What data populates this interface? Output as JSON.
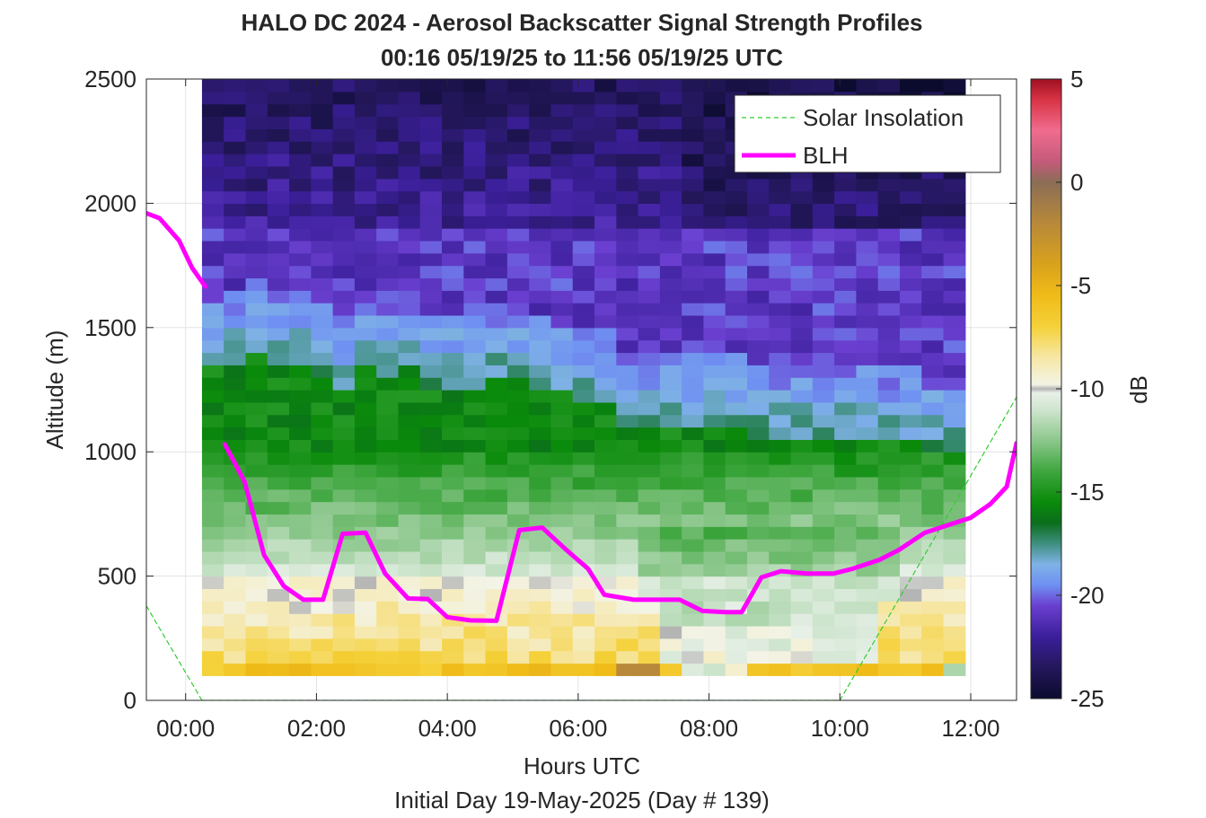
{
  "chart_data": {
    "type": "heatmap",
    "title": "HALO DC 2024 - Aerosol Backscatter Signal Strength Profiles",
    "subtitle": "00:16 05/19/25 to 11:56 05/19/25  UTC",
    "xlabel": "Hours UTC",
    "footer": "Initial Day 19-May-2025 (Day # 139)",
    "ylabel": "Altitude (m)",
    "colorbar_label": "dB",
    "xlim": [
      -0.6,
      12.7
    ],
    "ylim": [
      0,
      2500
    ],
    "grid": true,
    "legend_position": "top-right",
    "x_ticks": [
      {
        "value": 0,
        "label": "00:00"
      },
      {
        "value": 2,
        "label": "02:00"
      },
      {
        "value": 4,
        "label": "04:00"
      },
      {
        "value": 6,
        "label": "06:00"
      },
      {
        "value": 8,
        "label": "08:00"
      },
      {
        "value": 10,
        "label": "10:00"
      },
      {
        "value": 12,
        "label": "12:00"
      }
    ],
    "y_ticks": [
      {
        "value": 0,
        "label": "0"
      },
      {
        "value": 500,
        "label": "500"
      },
      {
        "value": 1000,
        "label": "1000"
      },
      {
        "value": 1500,
        "label": "1500"
      },
      {
        "value": 2000,
        "label": "2000"
      },
      {
        "value": 2500,
        "label": "2500"
      }
    ],
    "colorbar": {
      "min": -25,
      "max": 5,
      "ticks": [
        {
          "value": 5,
          "label": "5"
        },
        {
          "value": 0,
          "label": "0"
        },
        {
          "value": -5,
          "label": "-5"
        },
        {
          "value": -10,
          "label": "-10"
        },
        {
          "value": -15,
          "label": "-15"
        },
        {
          "value": -20,
          "label": "-20"
        },
        {
          "value": -25,
          "label": "-25"
        }
      ],
      "colormap": [
        {
          "v": -25,
          "c": "#0b0b2e"
        },
        {
          "v": -23.5,
          "c": "#24175c"
        },
        {
          "v": -22,
          "c": "#3b1f9a"
        },
        {
          "v": -20.5,
          "c": "#6a3fd0"
        },
        {
          "v": -19.5,
          "c": "#6f90f2"
        },
        {
          "v": -18.5,
          "c": "#7fb2e6"
        },
        {
          "v": -17.5,
          "c": "#3f8f80"
        },
        {
          "v": -16.5,
          "c": "#0b6e1c"
        },
        {
          "v": -15.5,
          "c": "#0a8a0a"
        },
        {
          "v": -14,
          "c": "#3ea63e"
        },
        {
          "v": -12.5,
          "c": "#8cc78c"
        },
        {
          "v": -11,
          "c": "#cfe5cf"
        },
        {
          "v": -10.2,
          "c": "#e8f0e8"
        },
        {
          "v": -10,
          "c": "#b4b4b4"
        },
        {
          "v": -9.8,
          "c": "#f3f3e6"
        },
        {
          "v": -8.5,
          "c": "#f6e7a6"
        },
        {
          "v": -7,
          "c": "#f5d13a"
        },
        {
          "v": -5.5,
          "c": "#efbc18"
        },
        {
          "v": -4,
          "c": "#d9a21c"
        },
        {
          "v": -2,
          "c": "#b8893a"
        },
        {
          "v": 0,
          "c": "#8a6d55"
        },
        {
          "v": 1,
          "c": "#c45a7a"
        },
        {
          "v": 2.5,
          "c": "#f06c8e"
        },
        {
          "v": 4,
          "c": "#d83344"
        },
        {
          "v": 5,
          "c": "#9d1020"
        }
      ]
    },
    "heatmap": {
      "x_start": 0.25,
      "x_step": 0.3333,
      "num_columns": 35,
      "y_start": 100,
      "y_step": 50,
      "num_rows": 48,
      "description_of_fill": "green/blue/purple values vs altitude; white/grey near -10 dB; yellow below ~500 m"
    },
    "series": [
      {
        "name": "Solar Insolation",
        "color": "#33cc33",
        "style": "dashed",
        "segments": [
          [
            [
              -0.6,
              380
            ],
            [
              0.25,
              0
            ]
          ],
          [
            [
              0.25,
              0
            ],
            [
              10.0,
              0
            ]
          ],
          [
            [
              10.0,
              0
            ],
            [
              12.7,
              1220
            ]
          ]
        ]
      },
      {
        "name": "BLH",
        "color": "#ff00ff",
        "style": "solid",
        "segments": [
          [
            [
              -0.6,
              1960
            ],
            [
              -0.4,
              1940
            ],
            [
              -0.1,
              1850
            ],
            [
              0.1,
              1740
            ],
            [
              0.3,
              1665
            ]
          ],
          [
            [
              0.6,
              1030
            ],
            [
              0.9,
              880
            ],
            [
              1.2,
              585
            ],
            [
              1.5,
              460
            ],
            [
              1.8,
              405
            ],
            [
              2.1,
              405
            ],
            [
              2.4,
              670
            ],
            [
              2.75,
              675
            ],
            [
              3.05,
              510
            ],
            [
              3.4,
              410
            ],
            [
              3.7,
              408
            ],
            [
              4.0,
              335
            ],
            [
              4.35,
              322
            ],
            [
              4.75,
              320
            ],
            [
              5.1,
              685
            ],
            [
              5.45,
              695
            ],
            [
              5.8,
              610
            ],
            [
              6.15,
              530
            ],
            [
              6.4,
              425
            ],
            [
              6.85,
              405
            ],
            [
              7.15,
              405
            ],
            [
              7.55,
              405
            ],
            [
              7.9,
              360
            ],
            [
              8.25,
              355
            ],
            [
              8.5,
              355
            ],
            [
              8.8,
              495
            ],
            [
              9.1,
              520
            ],
            [
              9.5,
              510
            ],
            [
              9.9,
              510
            ],
            [
              10.2,
              530
            ],
            [
              10.6,
              565
            ],
            [
              10.9,
              605
            ],
            [
              11.3,
              675
            ],
            [
              11.65,
              705
            ],
            [
              12.0,
              735
            ],
            [
              12.3,
              790
            ],
            [
              12.55,
              860
            ],
            [
              12.7,
              1035
            ]
          ]
        ]
      }
    ]
  }
}
